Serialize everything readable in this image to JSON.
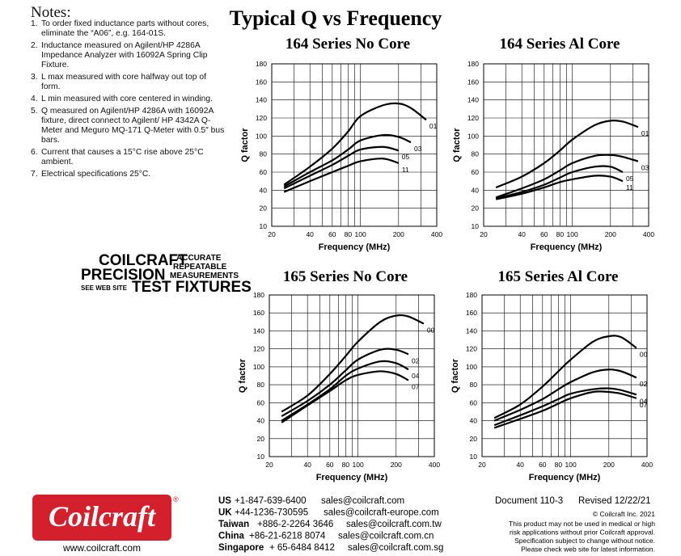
{
  "title": "Typical Q vs Frequency",
  "notes": {
    "heading": "Notes:",
    "items": [
      {
        "number": "1.",
        "text": "To order fixed inductance parts without cores, eliminate the “A06”, e.g. 164-01S."
      },
      {
        "number": "2.",
        "text": "Inductance measured on Agilent/HP 4286A Impedance Analyzer with 16092A Spring Clip Fixture."
      },
      {
        "number": "3.",
        "text": "L max measured with core halfway out top of form."
      },
      {
        "number": "4.",
        "text": "L min measured with core centered in winding."
      },
      {
        "number": "5.",
        "text": "Q measured on Agilent/HP 4286A with 16092A fixture, direct connect to Agilent/ HP 4342A Q-Meter and Meguro MQ-171 Q-Meter with 0.5″ bus bars."
      },
      {
        "number": "6.",
        "text": "Current that causes a 15°C rise above 25°C ambient."
      },
      {
        "number": "7.",
        "text": "Electrical specifications 25°C."
      }
    ]
  },
  "badge": {
    "brand": "COILCRAFT",
    "line2": "PRECISION",
    "line3": "TEST FIXTURES",
    "web": "SEE WEB SITE",
    "tag1": "ACCURATE",
    "tag2": "REPEATABLE",
    "tag3": "MEASUREMENTS"
  },
  "chart_data": [
    {
      "type": "line",
      "title": "164 Series No Core",
      "xlabel": "Frequency (MHz)",
      "ylabel": "Q factor",
      "log_x": true,
      "grid": true,
      "x": [
        25,
        40,
        60,
        80,
        100,
        150,
        200,
        250,
        330
      ],
      "xlim": [
        20,
        400
      ],
      "xticks": [
        20,
        40,
        60,
        80,
        100,
        200,
        400
      ],
      "x_grid_lines": [
        30,
        50,
        70,
        90,
        300
      ],
      "ylim": [
        10,
        180
      ],
      "yticks": [
        10,
        20,
        40,
        60,
        80,
        100,
        120,
        140,
        160,
        180
      ],
      "series": [
        {
          "name": "01",
          "color": "#000000",
          "values": [
            46,
            66,
            86,
            105,
            122,
            134,
            136,
            131,
            118
          ]
        },
        {
          "name": "03",
          "color": "#000000",
          "values": [
            44,
            60,
            73,
            85,
            95,
            101,
            99,
            93,
            null
          ]
        },
        {
          "name": "05",
          "color": "#000000",
          "values": [
            42,
            56,
            68,
            78,
            85,
            88,
            84,
            null,
            null
          ]
        },
        {
          "name": "11",
          "color": "#000000",
          "values": [
            38,
            50,
            60,
            67,
            72,
            75,
            70,
            null,
            null
          ]
        }
      ]
    },
    {
      "type": "line",
      "title": "164 Series Al Core",
      "xlabel": "Frequency (MHz)",
      "ylabel": "Q factor",
      "log_x": true,
      "grid": true,
      "x": [
        25,
        40,
        60,
        80,
        100,
        150,
        200,
        250,
        330
      ],
      "xlim": [
        20,
        400
      ],
      "xticks": [
        20,
        40,
        60,
        80,
        100,
        200,
        400
      ],
      "x_grid_lines": [
        30,
        50,
        70,
        90,
        300
      ],
      "ylim": [
        10,
        180
      ],
      "yticks": [
        10,
        20,
        40,
        60,
        80,
        100,
        120,
        140,
        160,
        180
      ],
      "series": [
        {
          "name": "01",
          "color": "#000000",
          "values": [
            43,
            55,
            70,
            84,
            96,
            112,
            117,
            116,
            110
          ]
        },
        {
          "name": "03",
          "color": "#000000",
          "values": [
            32,
            42,
            52,
            62,
            70,
            78,
            79,
            77,
            72
          ]
        },
        {
          "name": "05",
          "color": "#000000",
          "values": [
            31,
            38,
            46,
            54,
            60,
            66,
            66,
            60,
            null
          ]
        },
        {
          "name": "11",
          "color": "#000000",
          "values": [
            30,
            36,
            43,
            49,
            52,
            56,
            55,
            50,
            null
          ]
        }
      ]
    },
    {
      "type": "line",
      "title": "165 Series No Core",
      "xlabel": "Frequency (MHz)",
      "ylabel": "Q factor",
      "log_x": true,
      "grid": true,
      "x": [
        25,
        40,
        60,
        80,
        100,
        150,
        200,
        250,
        330
      ],
      "xlim": [
        20,
        400
      ],
      "xticks": [
        20,
        40,
        60,
        80,
        100,
        200,
        400
      ],
      "x_grid_lines": [
        30,
        50,
        70,
        90,
        300
      ],
      "ylim": [
        10,
        180
      ],
      "yticks": [
        10,
        20,
        40,
        60,
        80,
        100,
        120,
        140,
        160,
        180
      ],
      "series": [
        {
          "name": "00",
          "color": "#000000",
          "values": [
            50,
            68,
            92,
            112,
            128,
            150,
            157,
            156,
            148
          ]
        },
        {
          "name": "02",
          "color": "#000000",
          "values": [
            45,
            62,
            80,
            96,
            108,
            119,
            119,
            114,
            null
          ]
        },
        {
          "name": "04",
          "color": "#000000",
          "values": [
            40,
            58,
            75,
            90,
            98,
            106,
            104,
            97,
            null
          ]
        },
        {
          "name": "07",
          "color": "#000000",
          "values": [
            38,
            57,
            73,
            85,
            91,
            95,
            92,
            85,
            null
          ]
        }
      ]
    },
    {
      "type": "line",
      "title": "165 Series Al Core",
      "xlabel": "Frequency (MHz)",
      "ylabel": "Q factor",
      "log_x": true,
      "grid": true,
      "x": [
        25,
        40,
        60,
        80,
        100,
        150,
        200,
        250,
        330
      ],
      "xlim": [
        20,
        400
      ],
      "xticks": [
        20,
        40,
        60,
        80,
        100,
        200,
        400
      ],
      "x_grid_lines": [
        30,
        50,
        70,
        90,
        300
      ],
      "ylim": [
        10,
        180
      ],
      "yticks": [
        10,
        20,
        40,
        60,
        80,
        100,
        120,
        140,
        160,
        180
      ],
      "series": [
        {
          "name": "00",
          "color": "#000000",
          "values": [
            43,
            58,
            78,
            95,
            108,
            128,
            134,
            133,
            121
          ]
        },
        {
          "name": "02",
          "color": "#000000",
          "values": [
            40,
            52,
            64,
            75,
            83,
            94,
            97,
            95,
            88
          ]
        },
        {
          "name": "04",
          "color": "#000000",
          "values": [
            35,
            46,
            56,
            64,
            70,
            75,
            76,
            74,
            69
          ]
        },
        {
          "name": "07",
          "color": "#000000",
          "values": [
            32,
            42,
            51,
            59,
            65,
            72,
            72,
            70,
            65
          ]
        }
      ]
    }
  ],
  "logo": {
    "name": "Coilcraft",
    "mark": "®",
    "url": "www.coilcraft.com"
  },
  "contacts": [
    {
      "region": "US",
      "phone": "+1-847-639-6400",
      "email": "sales@coilcraft.com"
    },
    {
      "region": "UK",
      "phone": "+44-1236-730595",
      "email": "sales@coilcraft-europe.com"
    },
    {
      "region": "Taiwan",
      "phone": "+886-2-2264 3646",
      "email": "sales@coilcraft.com.tw"
    },
    {
      "region": "China",
      "phone": "+86-21-6218 8074",
      "email": "sales@coilcraft.com.cn"
    },
    {
      "region": "Singapore",
      "phone": "+ 65-6484 8412",
      "email": "sales@coilcraft.com.sg"
    }
  ],
  "footer": {
    "document": "Document 110-3",
    "revised": "Revised 12/22/21",
    "copyright": "© Coilcraft Inc. 2021",
    "disclaimer": [
      "This product may not be used in medical or high",
      "risk applications without prior Coilcraft approval.",
      "Specification subject to change without notice.",
      "Please check web site for latest information."
    ]
  }
}
